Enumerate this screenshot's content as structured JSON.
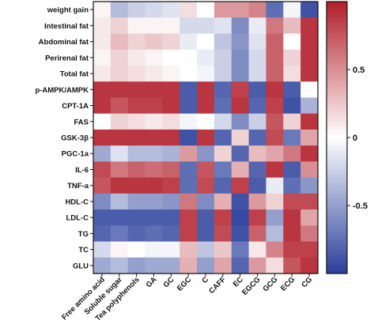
{
  "chart_data": {
    "type": "heatmap",
    "rows": [
      "weight gain",
      "Intestinal fat",
      "Abdominal fat",
      "Perirenal fat",
      "Total fat",
      "p-AMPK/AMPK",
      "CPT-1A",
      "FAS",
      "GSK-3β",
      "PGC-1a",
      "IL-6",
      "TNF-a",
      "HDL-C",
      "LDL-C",
      "TG",
      "TC",
      "GLU"
    ],
    "columns": [
      "Free amino acid",
      "Soluble sugar",
      "Tea polyphenols",
      "GA",
      "GC",
      "EGC",
      "C",
      "CAFF",
      "EC",
      "EGCG",
      "GCG",
      "ECG",
      "CG"
    ],
    "values": [
      [
        0.05,
        -0.35,
        -0.25,
        -0.2,
        -0.15,
        0.15,
        0.0,
        0.45,
        0.45,
        0.55,
        -0.75,
        -0.05,
        -0.9
      ],
      [
        0.1,
        0.2,
        0.05,
        0.05,
        0.05,
        -0.2,
        -0.2,
        -0.15,
        -0.6,
        -0.1,
        0.6,
        0.3,
        0.9
      ],
      [
        0.1,
        0.3,
        0.2,
        0.25,
        0.2,
        -0.1,
        0.0,
        -0.3,
        -0.55,
        -0.15,
        0.7,
        0.0,
        0.9
      ],
      [
        0.05,
        0.2,
        0.1,
        0.05,
        0.0,
        0.0,
        -0.1,
        -0.25,
        -0.6,
        -0.2,
        0.7,
        0.2,
        0.9
      ],
      [
        0.1,
        0.2,
        0.15,
        0.1,
        0.05,
        0.0,
        -0.05,
        -0.25,
        -0.6,
        -0.2,
        0.7,
        0.15,
        0.9
      ],
      [
        0.9,
        0.9,
        0.9,
        0.9,
        0.9,
        -0.85,
        0.9,
        -0.8,
        0.85,
        -0.85,
        0.9,
        -0.85,
        0.0
      ],
      [
        0.9,
        0.75,
        0.85,
        0.85,
        0.9,
        -0.85,
        0.9,
        -0.75,
        0.9,
        -0.8,
        0.85,
        -0.9,
        -0.4
      ],
      [
        0.0,
        0.2,
        0.15,
        0.1,
        0.15,
        -0.05,
        0.0,
        -0.2,
        -0.6,
        -0.25,
        0.75,
        0.2,
        0.9
      ],
      [
        0.9,
        0.9,
        0.9,
        0.9,
        0.9,
        -0.9,
        0.9,
        -0.8,
        0.2,
        -0.8,
        0.8,
        -0.7,
        0.4
      ],
      [
        -0.45,
        -0.15,
        -0.35,
        -0.35,
        -0.4,
        0.45,
        -0.55,
        0.2,
        -0.8,
        0.3,
        0.4,
        0.6,
        0.9
      ],
      [
        0.8,
        0.6,
        0.7,
        0.65,
        0.7,
        -0.75,
        0.75,
        -0.7,
        0.35,
        -0.8,
        0.9,
        -0.85,
        0.5
      ],
      [
        0.75,
        0.9,
        0.9,
        0.9,
        0.85,
        -0.75,
        0.8,
        -0.8,
        0.85,
        -0.85,
        -0.1,
        -0.75,
        -0.55
      ],
      [
        -0.6,
        -0.35,
        -0.5,
        -0.5,
        -0.55,
        0.6,
        -0.6,
        0.35,
        -0.9,
        0.45,
        0.2,
        0.8,
        0.8
      ],
      [
        -0.85,
        -0.85,
        -0.85,
        -0.85,
        -0.85,
        0.85,
        -0.85,
        0.85,
        -0.95,
        0.85,
        -0.5,
        0.9,
        0.4
      ],
      [
        -0.8,
        -0.7,
        -0.8,
        -0.75,
        -0.8,
        0.85,
        -0.85,
        0.8,
        -0.9,
        0.7,
        -0.35,
        0.9,
        0.6
      ],
      [
        -0.2,
        0.05,
        0.0,
        -0.05,
        -0.05,
        0.3,
        -0.3,
        0.25,
        -0.7,
        0.1,
        0.55,
        0.85,
        0.85
      ],
      [
        -0.45,
        -0.35,
        -0.5,
        -0.45,
        -0.45,
        0.35,
        -0.5,
        0.4,
        -0.8,
        0.45,
        0.15,
        0.75,
        0.9
      ]
    ],
    "colorbar": {
      "min": -1,
      "max": 1,
      "ticks": [
        0.5,
        0,
        -0.5
      ],
      "tick_labels": [
        "0.5",
        "0",
        "-0.5"
      ],
      "low_color": "#2a3f9b",
      "mid_color": "#ffffff",
      "high_color": "#b11e2a"
    }
  }
}
